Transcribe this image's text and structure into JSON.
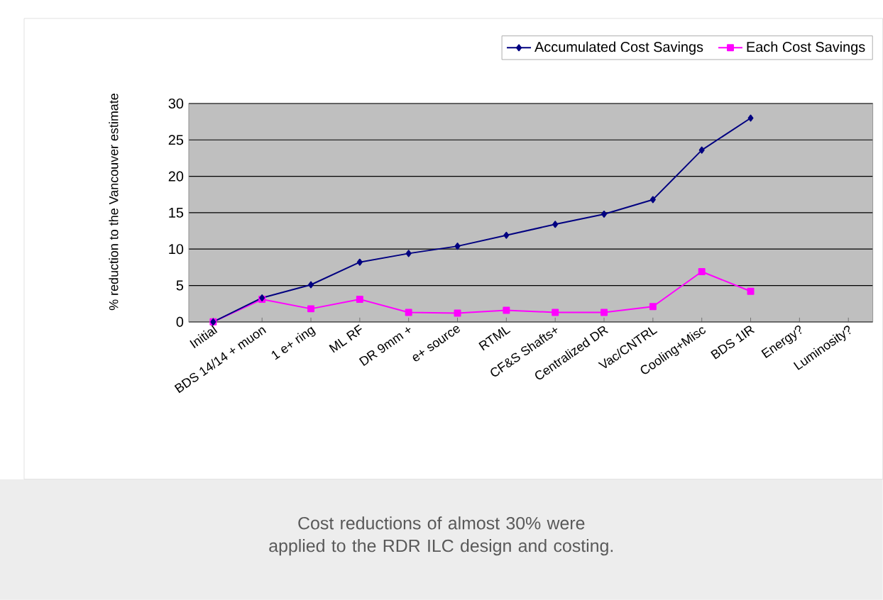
{
  "chart_data": {
    "type": "line",
    "ylabel": "% reduction to the Vancouver estimate",
    "categories": [
      "Initial",
      "BDS 14/14 + muon",
      "1 e+ ring",
      "ML RF",
      "DR 9mm +",
      "e+ source",
      "RTML",
      "CF&S Shafts+",
      "Centralized DR",
      "Vac/CNTRL",
      "Cooling+Misc",
      "BDS 1IR",
      "Energy?",
      "Luminosity?"
    ],
    "series": [
      {
        "name": "Accumulated Cost Savings",
        "color": "#000080",
        "marker": "diamond",
        "values": [
          0,
          3.3,
          5.1,
          8.2,
          9.4,
          10.4,
          11.9,
          13.4,
          14.8,
          16.8,
          23.6,
          28.0,
          null,
          null
        ]
      },
      {
        "name": "Each Cost Savings",
        "color": "#ff00ff",
        "marker": "square",
        "values": [
          0,
          3.1,
          1.8,
          3.1,
          1.3,
          1.2,
          1.6,
          1.3,
          1.3,
          2.1,
          6.9,
          4.2,
          null,
          null
        ]
      }
    ],
    "ylim": [
      0,
      30
    ],
    "yticks": [
      0,
      5,
      10,
      15,
      20,
      25,
      30
    ],
    "grid": "y",
    "legend": "top",
    "annotations": [
      "Cost reductions of almost 30% were applied to the RDR ILC design and costing."
    ]
  }
}
